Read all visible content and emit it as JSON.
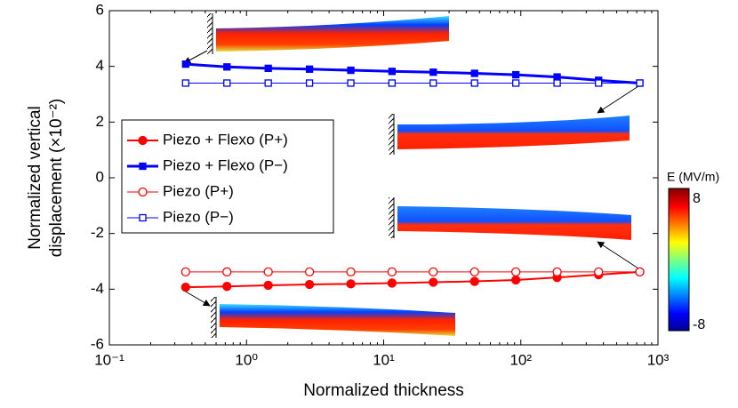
{
  "chart_data": {
    "type": "line",
    "xlabel": "Normalized thickness",
    "ylabel": [
      "Normalized vertical",
      "displacement (×10⁻²)"
    ],
    "xscale": "log",
    "xlim": [
      0.1,
      1000
    ],
    "ylim": [
      -6,
      6
    ],
    "xticks": [
      {
        "value": 0.1,
        "label": "10⁻¹"
      },
      {
        "value": 1,
        "label": "10⁰"
      },
      {
        "value": 10,
        "label": "10¹"
      },
      {
        "value": 100,
        "label": "10²"
      },
      {
        "value": 1000,
        "label": "10³"
      }
    ],
    "yticks": [
      -6,
      -4,
      -2,
      0,
      2,
      4,
      6
    ],
    "legend": "left",
    "x": [
      0.36,
      0.72,
      1.44,
      2.88,
      5.76,
      11.5,
      23,
      46,
      92,
      184,
      369,
      737
    ],
    "series": [
      {
        "name": "Piezo + Flexo (P+)",
        "color": "#ff0000",
        "marker": "circle",
        "filled": true,
        "line_width": 2,
        "values": [
          -3.93,
          -3.9,
          -3.86,
          -3.83,
          -3.81,
          -3.78,
          -3.75,
          -3.72,
          -3.67,
          -3.58,
          -3.48,
          -3.38
        ]
      },
      {
        "name": "Piezo + Flexo (P−)",
        "color": "#0000ff",
        "marker": "square",
        "filled": true,
        "line_width": 3,
        "values": [
          4.08,
          3.98,
          3.93,
          3.9,
          3.86,
          3.82,
          3.79,
          3.75,
          3.7,
          3.62,
          3.5,
          3.4
        ]
      },
      {
        "name": "Piezo (P+)",
        "color": "#ff0000",
        "marker": "circle",
        "filled": false,
        "line_width": 1,
        "values": [
          -3.38,
          -3.38,
          -3.38,
          -3.38,
          -3.38,
          -3.38,
          -3.38,
          -3.38,
          -3.38,
          -3.38,
          -3.38,
          -3.38
        ]
      },
      {
        "name": "Piezo (P−)",
        "color": "#0000ff",
        "marker": "square",
        "filled": false,
        "line_width": 1,
        "values": [
          3.4,
          3.4,
          3.4,
          3.4,
          3.4,
          3.4,
          3.4,
          3.4,
          3.4,
          3.4,
          3.4,
          3.4
        ]
      }
    ],
    "colorbar": {
      "label": "E (MV/m)",
      "lim": [
        -8,
        8
      ],
      "ticks": [
        -8,
        8
      ]
    }
  }
}
